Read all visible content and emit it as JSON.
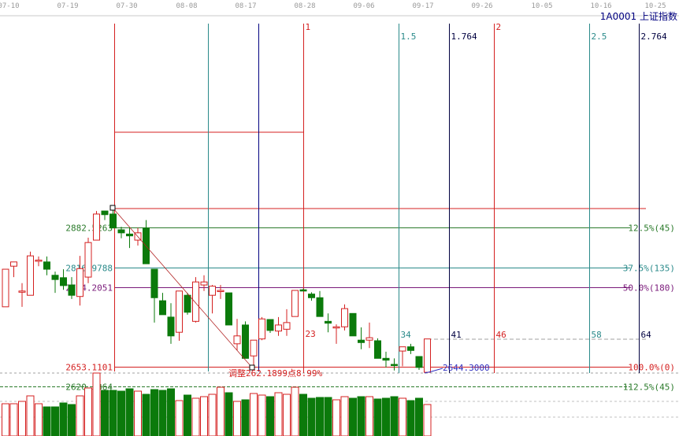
{
  "header": {
    "symbol_code": "1A0001",
    "symbol_name": "上证指数"
  },
  "colors": {
    "up": "#d42020",
    "down": "#0b7a0b",
    "fib_red": "#d42020",
    "fib_green": "#2a7a2a",
    "fib_teal": "#2a8a8a",
    "fib_purple": "#7a1a7a",
    "navy": "#000080",
    "grid_dash": "#a0a0a0"
  },
  "chart_data": {
    "type": "candlestick",
    "x_tick_labels": [
      "07-10",
      "07-19",
      "07-30",
      "08-08",
      "08-17",
      "08-28",
      "09-06",
      "09-17",
      "09-26",
      "10-05",
      "10-16",
      "10-25"
    ],
    "ohlc": [
      [
        2752,
        2814,
        2752,
        2814
      ],
      [
        2819,
        2826,
        2801,
        2826
      ],
      [
        2778,
        2791,
        2752,
        2778
      ],
      [
        2771,
        2843,
        2771,
        2836
      ],
      [
        2829,
        2835,
        2819,
        2829
      ],
      [
        2826,
        2835,
        2804,
        2814
      ],
      [
        2804,
        2810,
        2775,
        2797
      ],
      [
        2800,
        2814,
        2780,
        2787
      ],
      [
        2788,
        2801,
        2765,
        2771
      ],
      [
        2769,
        2836,
        2754,
        2815
      ],
      [
        2801,
        2866,
        2791,
        2858
      ],
      [
        2862,
        2910,
        2862,
        2905
      ],
      [
        2910,
        2910,
        2895,
        2904
      ],
      [
        2905,
        2915,
        2882,
        2882
      ],
      [
        2879,
        2884,
        2865,
        2874
      ],
      [
        2872,
        2882,
        2849,
        2869
      ],
      [
        2862,
        2882,
        2853,
        2874
      ],
      [
        2882,
        2895,
        2823,
        2823
      ],
      [
        2814,
        2814,
        2726,
        2767
      ],
      [
        2762,
        2775,
        2739,
        2739
      ],
      [
        2735,
        2758,
        2691,
        2704
      ],
      [
        2710,
        2778,
        2696,
        2778
      ],
      [
        2771,
        2775,
        2739,
        2743
      ],
      [
        2728,
        2801,
        2726,
        2793
      ],
      [
        2788,
        2804,
        2778,
        2793
      ],
      [
        2771,
        2788,
        2741,
        2786
      ],
      [
        2779,
        2788,
        2765,
        2779
      ],
      [
        2775,
        2775,
        2722,
        2722
      ],
      [
        2691,
        2732,
        2680,
        2704
      ],
      [
        2722,
        2728,
        2667,
        2667
      ],
      [
        2671,
        2697,
        2654,
        2697
      ],
      [
        2699,
        2735,
        2697,
        2732
      ],
      [
        2731,
        2731,
        2709,
        2713
      ],
      [
        2712,
        2735,
        2704,
        2722
      ],
      [
        2715,
        2748,
        2704,
        2726
      ],
      [
        2736,
        2779,
        2736,
        2779
      ],
      [
        2780,
        2782,
        2778,
        2778
      ],
      [
        2773,
        2776,
        2762,
        2767
      ],
      [
        2767,
        2778,
        2736,
        2736
      ],
      [
        2728,
        2741,
        2710,
        2725
      ],
      [
        2718,
        2723,
        2691,
        2719
      ],
      [
        2719,
        2756,
        2713,
        2749
      ],
      [
        2741,
        2741,
        2704,
        2704
      ],
      [
        2697,
        2718,
        2682,
        2693
      ],
      [
        2697,
        2726,
        2684,
        2701
      ],
      [
        2696,
        2700,
        2667,
        2667
      ],
      [
        2667,
        2678,
        2652,
        2664
      ],
      [
        2657,
        2667,
        2647,
        2656
      ],
      [
        2679,
        2686,
        2654,
        2686
      ],
      [
        2686,
        2691,
        2674,
        2680
      ],
      [
        2670,
        2670,
        2648,
        2652
      ],
      [
        2644,
        2699,
        2644,
        2699
      ]
    ],
    "volume": [
      41,
      41,
      44,
      51,
      41,
      37,
      37,
      42,
      40,
      51,
      61,
      80,
      58,
      58,
      57,
      60,
      57,
      53,
      59,
      58,
      60,
      45,
      52,
      48,
      50,
      53,
      62,
      55,
      44,
      46,
      54,
      52,
      50,
      55,
      53,
      62,
      53,
      48,
      49,
      49,
      46,
      50,
      48,
      50,
      50,
      47,
      48,
      50,
      48,
      45,
      48,
      40
    ],
    "price_levels": [
      {
        "price": 2882.5263,
        "label": "2882.5263",
        "ratio_label": "12.5%(45)",
        "color": "#2a7a2a"
      },
      {
        "price": 2816.9788,
        "label": "2816.9788",
        "ratio_label": "37.5%(135)",
        "color": "#2a8a8a"
      },
      {
        "price": 2784.2051,
        "label": "2784.2051",
        "ratio_label": "50.0%(180)",
        "color": "#7a1a7a"
      },
      {
        "price": 2653.1101,
        "label": "2653.1101",
        "ratio_label": "100.0%(0)",
        "color": "#d42020"
      },
      {
        "price": 2620.3364,
        "label": "2620.3364",
        "ratio_label": "112.5%(45)",
        "color": "#2a7a2a"
      }
    ],
    "time_lines": [
      {
        "top_label": "",
        "bottom_label": "",
        "color": "#d42020"
      },
      {
        "top_label": "",
        "bottom_label": "",
        "color": "#2a8a8a"
      },
      {
        "top_label": "",
        "bottom_label": "",
        "color": "#000080"
      },
      {
        "top_label": "1",
        "bottom_label": "23",
        "color": "#d42020"
      },
      {
        "top_label": "1.5",
        "bottom_label": "34",
        "color": "#2a8a8a"
      },
      {
        "top_label": "1.764",
        "bottom_label": "41",
        "color": "#000040"
      },
      {
        "top_label": "2",
        "bottom_label": "46",
        "color": "#d42020"
      },
      {
        "top_label": "2.5",
        "bottom_label": "58",
        "color": "#2a8a8a"
      },
      {
        "top_label": "2.764",
        "bottom_label": "64",
        "color": "#000040"
      }
    ],
    "high_point": 2915.3,
    "low_label": "2644.3000",
    "adjustment_label": "调整262.1899点8.99%"
  }
}
